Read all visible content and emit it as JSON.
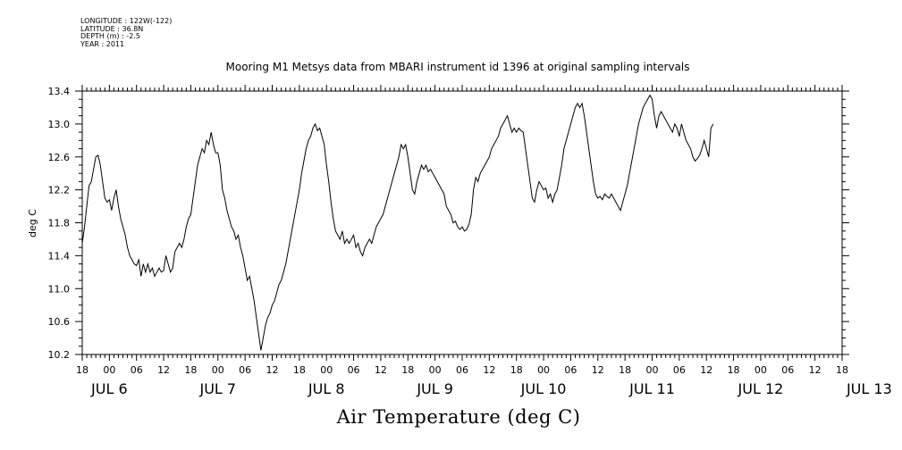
{
  "meta_lines": [
    "LONGITUDE : 122W(-122)",
    "LATITUDE : 36.8N",
    "DEPTH (m) : -2.5",
    "YEAR : 2011"
  ],
  "chart_data": {
    "type": "line",
    "title": "Mooring M1 Metsys data from MBARI instrument id 1396 at original sampling intervals",
    "xlabel": "Air Temperature (deg C)",
    "ylabel": "deg C",
    "ylim": [
      10.2,
      13.4
    ],
    "yticks": [
      "10.2",
      "10.6",
      "11.0",
      "11.4",
      "11.8",
      "12.2",
      "12.6",
      "13.0",
      "13.4"
    ],
    "xlim_hours": [
      0,
      168
    ],
    "hour_tick_labels": [
      "18",
      "00",
      "06",
      "12",
      "18",
      "00",
      "06",
      "12",
      "18",
      "00",
      "06",
      "12",
      "18",
      "00",
      "06",
      "12",
      "18",
      "00",
      "06",
      "12",
      "18",
      "00",
      "06",
      "12",
      "18",
      "00",
      "06",
      "12",
      "18"
    ],
    "day_labels": [
      {
        "label": "JUL  6",
        "hour": 6
      },
      {
        "label": "JUL  7",
        "hour": 30
      },
      {
        "label": "JUL  8",
        "hour": 54
      },
      {
        "label": "JUL  9",
        "hour": 78
      },
      {
        "label": "JUL 10",
        "hour": 102
      },
      {
        "label": "JUL 11",
        "hour": 126
      },
      {
        "label": "JUL 12",
        "hour": 150
      },
      {
        "label": "JUL 13",
        "hour": 174
      }
    ],
    "grid": false,
    "series": [
      {
        "points": [
          [
            0,
            11.55
          ],
          [
            0.5,
            11.75
          ],
          [
            1,
            12.0
          ],
          [
            1.5,
            12.25
          ],
          [
            2,
            12.3
          ],
          [
            2.5,
            12.45
          ],
          [
            3,
            12.6
          ],
          [
            3.5,
            12.62
          ],
          [
            4,
            12.5
          ],
          [
            4.5,
            12.3
          ],
          [
            5,
            12.1
          ],
          [
            5.5,
            12.05
          ],
          [
            6,
            12.08
          ],
          [
            6.5,
            11.95
          ],
          [
            7,
            12.1
          ],
          [
            7.5,
            12.2
          ],
          [
            8,
            12.0
          ],
          [
            8.5,
            11.85
          ],
          [
            9,
            11.75
          ],
          [
            9.5,
            11.65
          ],
          [
            10,
            11.5
          ],
          [
            10.5,
            11.4
          ],
          [
            11,
            11.35
          ],
          [
            11.5,
            11.3
          ],
          [
            12,
            11.28
          ],
          [
            12.5,
            11.35
          ],
          [
            13,
            11.15
          ],
          [
            13.5,
            11.3
          ],
          [
            14,
            11.2
          ],
          [
            14.5,
            11.3
          ],
          [
            15,
            11.2
          ],
          [
            15.5,
            11.25
          ],
          [
            16,
            11.15
          ],
          [
            16.5,
            11.2
          ],
          [
            17,
            11.25
          ],
          [
            17.5,
            11.2
          ],
          [
            18,
            11.22
          ],
          [
            18.5,
            11.4
          ],
          [
            19,
            11.3
          ],
          [
            19.5,
            11.2
          ],
          [
            20,
            11.25
          ],
          [
            20.5,
            11.45
          ],
          [
            21,
            11.5
          ],
          [
            21.5,
            11.55
          ],
          [
            22,
            11.5
          ],
          [
            22.5,
            11.6
          ],
          [
            23,
            11.75
          ],
          [
            23.5,
            11.85
          ],
          [
            24,
            11.9
          ],
          [
            24.5,
            12.1
          ],
          [
            25,
            12.3
          ],
          [
            25.5,
            12.5
          ],
          [
            26,
            12.6
          ],
          [
            26.5,
            12.7
          ],
          [
            27,
            12.65
          ],
          [
            27.5,
            12.8
          ],
          [
            28,
            12.75
          ],
          [
            28.5,
            12.9
          ],
          [
            29,
            12.75
          ],
          [
            29.5,
            12.65
          ],
          [
            30,
            12.65
          ],
          [
            30.5,
            12.5
          ],
          [
            31,
            12.2
          ],
          [
            31.5,
            12.1
          ],
          [
            32,
            11.95
          ],
          [
            32.5,
            11.85
          ],
          [
            33,
            11.75
          ],
          [
            33.5,
            11.7
          ],
          [
            34,
            11.6
          ],
          [
            34.5,
            11.65
          ],
          [
            35,
            11.5
          ],
          [
            35.5,
            11.4
          ],
          [
            36,
            11.25
          ],
          [
            36.5,
            11.1
          ],
          [
            37,
            11.15
          ],
          [
            37.5,
            11.0
          ],
          [
            38,
            10.85
          ],
          [
            38.5,
            10.65
          ],
          [
            39,
            10.45
          ],
          [
            39.5,
            10.25
          ],
          [
            40,
            10.4
          ],
          [
            40.5,
            10.55
          ],
          [
            41,
            10.65
          ],
          [
            41.5,
            10.7
          ],
          [
            42,
            10.8
          ],
          [
            42.5,
            10.85
          ],
          [
            43,
            10.95
          ],
          [
            43.5,
            11.05
          ],
          [
            44,
            11.1
          ],
          [
            44.5,
            11.2
          ],
          [
            45,
            11.3
          ],
          [
            45.5,
            11.45
          ],
          [
            46,
            11.6
          ],
          [
            46.5,
            11.75
          ],
          [
            47,
            11.9
          ],
          [
            47.5,
            12.05
          ],
          [
            48,
            12.2
          ],
          [
            48.5,
            12.4
          ],
          [
            49,
            12.55
          ],
          [
            49.5,
            12.7
          ],
          [
            50,
            12.8
          ],
          [
            50.5,
            12.85
          ],
          [
            51,
            12.95
          ],
          [
            51.5,
            13.0
          ],
          [
            52,
            12.92
          ],
          [
            52.5,
            12.95
          ],
          [
            53,
            12.85
          ],
          [
            53.5,
            12.75
          ],
          [
            54,
            12.5
          ],
          [
            54.5,
            12.3
          ],
          [
            55,
            12.05
          ],
          [
            55.5,
            11.85
          ],
          [
            56,
            11.7
          ],
          [
            56.5,
            11.65
          ],
          [
            57,
            11.6
          ],
          [
            57.5,
            11.7
          ],
          [
            58,
            11.55
          ],
          [
            58.5,
            11.6
          ],
          [
            59,
            11.55
          ],
          [
            59.5,
            11.6
          ],
          [
            60,
            11.65
          ],
          [
            60.5,
            11.5
          ],
          [
            61,
            11.55
          ],
          [
            61.5,
            11.45
          ],
          [
            62,
            11.4
          ],
          [
            62.5,
            11.5
          ],
          [
            63,
            11.55
          ],
          [
            63.5,
            11.6
          ],
          [
            64,
            11.55
          ],
          [
            64.5,
            11.65
          ],
          [
            65,
            11.75
          ],
          [
            65.5,
            11.8
          ],
          [
            66,
            11.85
          ],
          [
            66.5,
            11.9
          ],
          [
            67,
            12.0
          ],
          [
            67.5,
            12.1
          ],
          [
            68,
            12.2
          ],
          [
            68.5,
            12.3
          ],
          [
            69,
            12.4
          ],
          [
            69.5,
            12.5
          ],
          [
            70,
            12.6
          ],
          [
            70.5,
            12.75
          ],
          [
            71,
            12.7
          ],
          [
            71.5,
            12.75
          ],
          [
            72,
            12.6
          ],
          [
            72.5,
            12.4
          ],
          [
            73,
            12.2
          ],
          [
            73.5,
            12.15
          ],
          [
            74,
            12.3
          ],
          [
            74.5,
            12.4
          ],
          [
            75,
            12.5
          ],
          [
            75.5,
            12.45
          ],
          [
            76,
            12.5
          ],
          [
            76.5,
            12.42
          ],
          [
            77,
            12.45
          ],
          [
            77.5,
            12.4
          ],
          [
            78,
            12.35
          ],
          [
            78.5,
            12.3
          ],
          [
            79,
            12.25
          ],
          [
            79.5,
            12.2
          ],
          [
            80,
            12.15
          ],
          [
            80.5,
            12.0
          ],
          [
            81,
            11.95
          ],
          [
            81.5,
            11.9
          ],
          [
            82,
            11.8
          ],
          [
            82.5,
            11.82
          ],
          [
            83,
            11.75
          ],
          [
            83.5,
            11.72
          ],
          [
            84,
            11.75
          ],
          [
            84.5,
            11.7
          ],
          [
            85,
            11.72
          ],
          [
            85.5,
            11.78
          ],
          [
            86,
            11.9
          ],
          [
            86.5,
            12.2
          ],
          [
            87,
            12.35
          ],
          [
            87.5,
            12.3
          ],
          [
            88,
            12.4
          ],
          [
            88.5,
            12.45
          ],
          [
            89,
            12.5
          ],
          [
            89.5,
            12.55
          ],
          [
            90,
            12.6
          ],
          [
            90.5,
            12.7
          ],
          [
            91,
            12.75
          ],
          [
            91.5,
            12.8
          ],
          [
            92,
            12.85
          ],
          [
            92.5,
            12.95
          ],
          [
            93,
            13.0
          ],
          [
            93.5,
            13.05
          ],
          [
            94,
            13.1
          ],
          [
            94.5,
            13.0
          ],
          [
            95,
            12.9
          ],
          [
            95.5,
            12.95
          ],
          [
            96,
            12.9
          ],
          [
            96.5,
            12.95
          ],
          [
            97,
            12.92
          ],
          [
            97.5,
            12.9
          ],
          [
            98,
            12.7
          ],
          [
            98.5,
            12.5
          ],
          [
            99,
            12.3
          ],
          [
            99.5,
            12.1
          ],
          [
            100,
            12.05
          ],
          [
            100.5,
            12.2
          ],
          [
            101,
            12.3
          ],
          [
            101.5,
            12.25
          ],
          [
            102,
            12.2
          ],
          [
            102.5,
            12.22
          ],
          [
            103,
            12.1
          ],
          [
            103.5,
            12.15
          ],
          [
            104,
            12.05
          ],
          [
            104.5,
            12.15
          ],
          [
            105,
            12.2
          ],
          [
            105.5,
            12.35
          ],
          [
            106,
            12.5
          ],
          [
            106.5,
            12.7
          ],
          [
            107,
            12.8
          ],
          [
            107.5,
            12.9
          ],
          [
            108,
            13.0
          ],
          [
            108.5,
            13.1
          ],
          [
            109,
            13.2
          ],
          [
            109.5,
            13.25
          ],
          [
            110,
            13.2
          ],
          [
            110.5,
            13.25
          ],
          [
            111,
            13.1
          ],
          [
            111.5,
            12.9
          ],
          [
            112,
            12.7
          ],
          [
            112.5,
            12.5
          ],
          [
            113,
            12.3
          ],
          [
            113.5,
            12.15
          ],
          [
            114,
            12.1
          ],
          [
            114.5,
            12.12
          ],
          [
            115,
            12.08
          ],
          [
            115.5,
            12.15
          ],
          [
            116,
            12.12
          ],
          [
            116.5,
            12.1
          ],
          [
            117,
            12.15
          ],
          [
            117.5,
            12.1
          ],
          [
            118,
            12.05
          ],
          [
            118.5,
            12.0
          ],
          [
            119,
            11.95
          ],
          [
            119.5,
            12.05
          ],
          [
            120,
            12.15
          ],
          [
            120.5,
            12.25
          ],
          [
            121,
            12.4
          ],
          [
            121.5,
            12.55
          ],
          [
            122,
            12.7
          ],
          [
            122.5,
            12.85
          ],
          [
            123,
            13.0
          ],
          [
            123.5,
            13.1
          ],
          [
            124,
            13.2
          ],
          [
            124.5,
            13.25
          ],
          [
            125,
            13.3
          ],
          [
            125.5,
            13.35
          ],
          [
            126,
            13.3
          ],
          [
            126.5,
            13.1
          ],
          [
            127,
            12.95
          ],
          [
            127.5,
            13.1
          ],
          [
            128,
            13.15
          ],
          [
            128.5,
            13.1
          ],
          [
            129,
            13.05
          ],
          [
            129.5,
            13.0
          ],
          [
            130,
            12.95
          ],
          [
            130.5,
            12.9
          ],
          [
            131,
            13.0
          ],
          [
            131.5,
            12.95
          ],
          [
            132,
            12.85
          ],
          [
            132.5,
            13.0
          ],
          [
            133,
            12.9
          ],
          [
            133.5,
            12.8
          ],
          [
            134,
            12.75
          ],
          [
            134.5,
            12.7
          ],
          [
            135,
            12.6
          ],
          [
            135.5,
            12.55
          ],
          [
            136,
            12.58
          ],
          [
            136.5,
            12.62
          ],
          [
            137,
            12.7
          ],
          [
            137.5,
            12.8
          ],
          [
            138,
            12.7
          ],
          [
            138.5,
            12.6
          ],
          [
            139,
            12.95
          ],
          [
            139.5,
            13.0
          ]
        ]
      }
    ]
  }
}
